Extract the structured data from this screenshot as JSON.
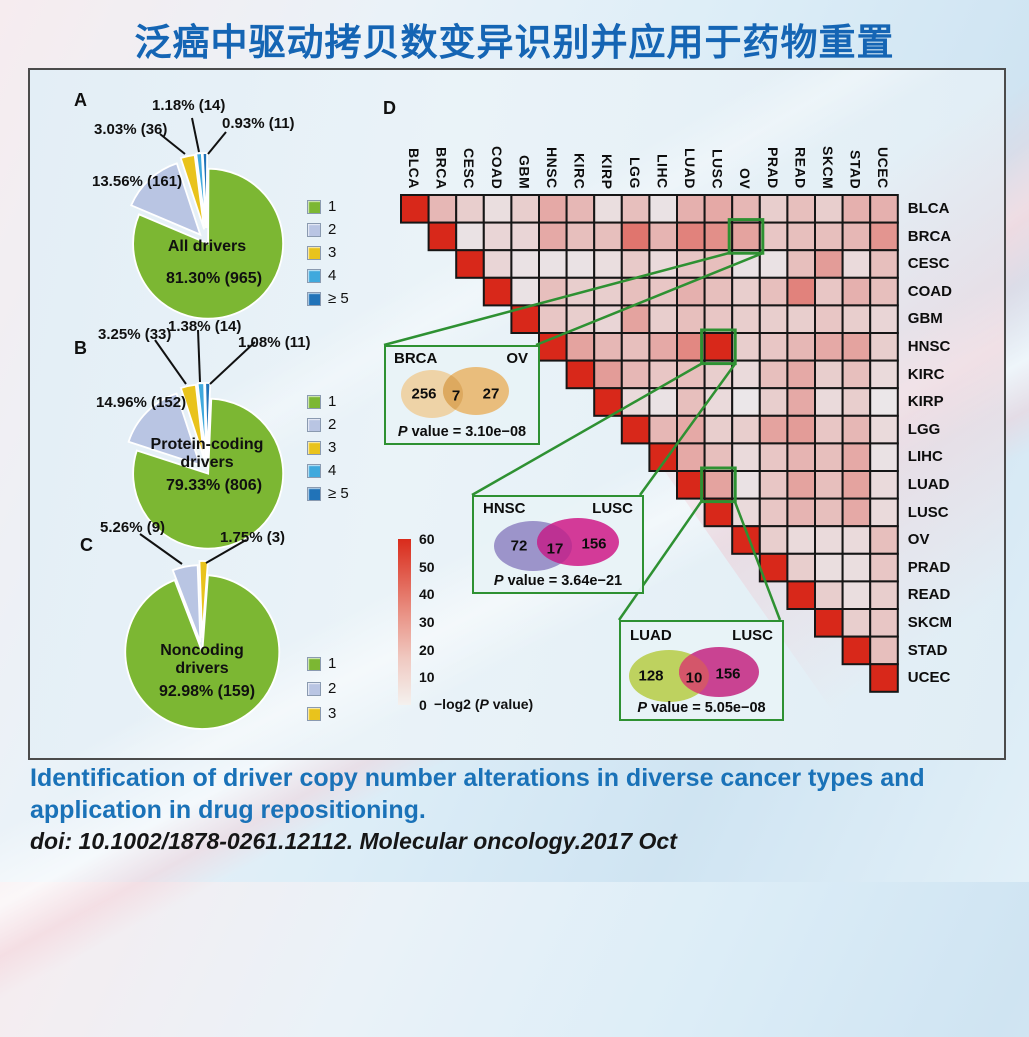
{
  "title": "泛癌中驱动拷贝数变异识别并应用于药物重置",
  "caption": {
    "line1": "Identification of driver copy number alterations in diverse cancer types and",
    "line2": "application in drug repositioning.",
    "doi": "doi: 10.1002/1878-0261.12112. Molecular oncology.2017 Oct"
  },
  "colors": {
    "accent_blue": "#1565b4",
    "heat_max": "#d92b1b",
    "heat_min": "#ecf2f5",
    "highlight_green": "#2e9132",
    "pie_palette": [
      "#7cb733",
      "#b9c5e3",
      "#e9c31c",
      "#3fa9dd",
      "#2173b8"
    ]
  },
  "panels": {
    "A": {
      "label": "A",
      "center_label": "All drivers",
      "center_value": "81.30% (965)",
      "callouts": [
        "1.18% (14)",
        "0.93% (11)",
        "3.03% (36)",
        "13.56% (161)"
      ],
      "legend": [
        {
          "label": "1",
          "color": "#7cb733"
        },
        {
          "label": "2",
          "color": "#b9c5e3"
        },
        {
          "label": "3",
          "color": "#e9c31c"
        },
        {
          "label": "4",
          "color": "#3fa9dd"
        },
        {
          "label": "≥ 5",
          "color": "#2173b8"
        }
      ]
    },
    "B": {
      "label": "B",
      "center_label1": "Protein-coding",
      "center_label2": "drivers",
      "center_value": "79.33% (806)",
      "callouts": [
        "3.25% (33)",
        "1.38% (14)",
        "1.08% (11)",
        "14.96% (152)"
      ],
      "legend": [
        {
          "label": "1",
          "color": "#7cb733"
        },
        {
          "label": "2",
          "color": "#b9c5e3"
        },
        {
          "label": "3",
          "color": "#e9c31c"
        },
        {
          "label": "4",
          "color": "#3fa9dd"
        },
        {
          "label": "≥ 5",
          "color": "#2173b8"
        }
      ]
    },
    "C": {
      "label": "C",
      "center_label1": "Noncoding",
      "center_label2": "drivers",
      "center_value": "92.98% (159)",
      "callouts": [
        "5.26% (9)",
        "1.75% (3)"
      ],
      "legend": [
        {
          "label": "1",
          "color": "#7cb733"
        },
        {
          "label": "2",
          "color": "#b9c5e3"
        },
        {
          "label": "3",
          "color": "#e9c31c"
        }
      ]
    },
    "D": {
      "label": "D",
      "cancer_types": [
        "BLCA",
        "BRCA",
        "CESC",
        "COAD",
        "GBM",
        "HNSC",
        "KIRC",
        "KIRP",
        "LGG",
        "LIHC",
        "LUAD",
        "LUSC",
        "OV",
        "PRAD",
        "READ",
        "SKCM",
        "STAD",
        "UCEC"
      ],
      "colorbar": {
        "ticks": [
          60,
          50,
          40,
          30,
          20,
          10,
          0
        ],
        "label_pre": "−log2 (",
        "label_p": "P",
        "label_post": " value)"
      },
      "highlights": [
        {
          "row": "BRCA",
          "col": "OV"
        },
        {
          "row": "HNSC",
          "col": "LUSC"
        },
        {
          "row": "LUAD",
          "col": "LUSC"
        }
      ],
      "venns": [
        {
          "left_label": "BRCA",
          "right_label": "OV",
          "left_n": "256",
          "overlap_n": "7",
          "right_n": "27",
          "p_prefix": "P",
          "p_rest": " value = 3.10e−08",
          "left_color": "#eed3a7",
          "right_color": "#e9bd7c",
          "overlap_color": "#dda95f"
        },
        {
          "left_label": "HNSC",
          "right_label": "LUSC",
          "left_n": "72",
          "overlap_n": "17",
          "right_n": "156",
          "p_prefix": "P",
          "p_rest": " value = 3.64e−21",
          "left_color": "#9c94ca",
          "right_color": "#d33a98",
          "overlap_color": "#bd3193"
        },
        {
          "left_label": "LUAD",
          "right_label": "LUSC",
          "left_n": "128",
          "overlap_n": "10",
          "right_n": "156",
          "p_prefix": "P",
          "p_rest": " value = 5.05e−08",
          "left_color": "#bed25f",
          "right_color": "#c94392",
          "overlap_color": "#d4566a"
        }
      ]
    }
  },
  "chart_data": [
    {
      "type": "pie",
      "title": "All drivers",
      "categories": [
        "1",
        "2",
        "3",
        "4",
        "≥ 5"
      ],
      "values": [
        81.3,
        13.56,
        3.03,
        1.18,
        0.93
      ],
      "counts": [
        965,
        161,
        36,
        14,
        11
      ],
      "colors": [
        "#7cb733",
        "#b9c5e3",
        "#e9c31c",
        "#3fa9dd",
        "#2173b8"
      ],
      "legend_position": "right"
    },
    {
      "type": "pie",
      "title": "Protein-coding drivers",
      "categories": [
        "1",
        "2",
        "3",
        "4",
        "≥ 5"
      ],
      "values": [
        79.33,
        14.96,
        3.25,
        1.38,
        1.08
      ],
      "counts": [
        806,
        152,
        33,
        14,
        11
      ],
      "colors": [
        "#7cb733",
        "#b9c5e3",
        "#e9c31c",
        "#3fa9dd",
        "#2173b8"
      ],
      "legend_position": "right"
    },
    {
      "type": "pie",
      "title": "Noncoding drivers",
      "categories": [
        "1",
        "2",
        "3"
      ],
      "values": [
        92.98,
        5.26,
        1.75
      ],
      "counts": [
        159,
        9,
        3
      ],
      "colors": [
        "#7cb733",
        "#b9c5e3",
        "#e9c31c"
      ],
      "legend_position": "right"
    },
    {
      "type": "heatmap",
      "title": "Pairwise overlap significance of driver CNAs across 18 cancer types",
      "x": [
        "BLCA",
        "BRCA",
        "CESC",
        "COAD",
        "GBM",
        "HNSC",
        "KIRC",
        "KIRP",
        "LGG",
        "LIHC",
        "LUAD",
        "LUSC",
        "OV",
        "PRAD",
        "READ",
        "SKCM",
        "STAD",
        "UCEC"
      ],
      "y": [
        "BLCA",
        "BRCA",
        "CESC",
        "COAD",
        "GBM",
        "HNSC",
        "KIRC",
        "KIRP",
        "LGG",
        "LIHC",
        "LUAD",
        "LUSC",
        "OV",
        "PRAD",
        "READ",
        "SKCM",
        "STAD",
        "UCEC"
      ],
      "scale_label": "−log2 (P value)",
      "scale_range": [
        0,
        60
      ],
      "values_estimated": true,
      "values": [
        [
          60,
          14,
          8,
          4,
          8,
          18,
          14,
          4,
          12,
          3,
          16,
          18,
          14,
          8,
          12,
          8,
          16,
          16
        ],
        [
          null,
          60,
          3,
          6,
          6,
          18,
          12,
          12,
          34,
          15,
          30,
          26,
          20,
          10,
          12,
          12,
          14,
          24
        ],
        [
          null,
          null,
          60,
          6,
          3,
          3,
          3,
          4,
          9,
          5,
          10,
          12,
          3,
          3,
          12,
          22,
          5,
          12
        ],
        [
          null,
          null,
          null,
          60,
          3,
          12,
          8,
          8,
          12,
          10,
          16,
          12,
          8,
          12,
          30,
          10,
          16,
          12
        ],
        [
          null,
          null,
          null,
          null,
          60,
          10,
          8,
          6,
          20,
          8,
          12,
          10,
          8,
          8,
          8,
          10,
          8,
          6
        ],
        [
          null,
          null,
          null,
          null,
          null,
          60,
          20,
          14,
          12,
          18,
          28,
          60,
          8,
          10,
          14,
          18,
          20,
          8
        ],
        [
          null,
          null,
          null,
          null,
          null,
          null,
          60,
          22,
          14,
          10,
          12,
          8,
          5,
          12,
          18,
          8,
          12,
          5
        ],
        [
          null,
          null,
          null,
          null,
          null,
          null,
          null,
          60,
          5,
          3,
          12,
          5,
          2,
          8,
          18,
          5,
          8,
          2
        ],
        [
          null,
          null,
          null,
          null,
          null,
          null,
          null,
          null,
          60,
          14,
          18,
          8,
          8,
          20,
          22,
          10,
          14,
          5
        ],
        [
          null,
          null,
          null,
          null,
          null,
          null,
          null,
          null,
          null,
          60,
          18,
          12,
          5,
          10,
          15,
          12,
          18,
          3
        ],
        [
          null,
          null,
          null,
          null,
          null,
          null,
          null,
          null,
          null,
          null,
          60,
          20,
          3,
          10,
          20,
          12,
          20,
          5
        ],
        [
          null,
          null,
          null,
          null,
          null,
          null,
          null,
          null,
          null,
          null,
          null,
          60,
          5,
          10,
          15,
          12,
          18,
          5
        ],
        [
          null,
          null,
          null,
          null,
          null,
          null,
          null,
          null,
          null,
          null,
          null,
          null,
          60,
          8,
          5,
          5,
          5,
          12
        ],
        [
          null,
          null,
          null,
          null,
          null,
          null,
          null,
          null,
          null,
          null,
          null,
          null,
          null,
          60,
          8,
          4,
          4,
          10
        ],
        [
          null,
          null,
          null,
          null,
          null,
          null,
          null,
          null,
          null,
          null,
          null,
          null,
          null,
          null,
          60,
          8,
          4,
          8
        ],
        [
          null,
          null,
          null,
          null,
          null,
          null,
          null,
          null,
          null,
          null,
          null,
          null,
          null,
          null,
          null,
          60,
          8,
          10
        ],
        [
          null,
          null,
          null,
          null,
          null,
          null,
          null,
          null,
          null,
          null,
          null,
          null,
          null,
          null,
          null,
          null,
          60,
          12
        ],
        [
          null,
          null,
          null,
          null,
          null,
          null,
          null,
          null,
          null,
          null,
          null,
          null,
          null,
          null,
          null,
          null,
          null,
          60
        ]
      ],
      "annotations": [
        {
          "pair": [
            "BRCA",
            "OV"
          ],
          "venn": [
            256,
            7,
            27
          ],
          "p_value": "3.10e−08"
        },
        {
          "pair": [
            "HNSC",
            "LUSC"
          ],
          "venn": [
            72,
            17,
            156
          ],
          "p_value": "3.64e−21"
        },
        {
          "pair": [
            "LUAD",
            "LUSC"
          ],
          "venn": [
            128,
            10,
            156
          ],
          "p_value": "5.05e−08"
        }
      ]
    }
  ]
}
